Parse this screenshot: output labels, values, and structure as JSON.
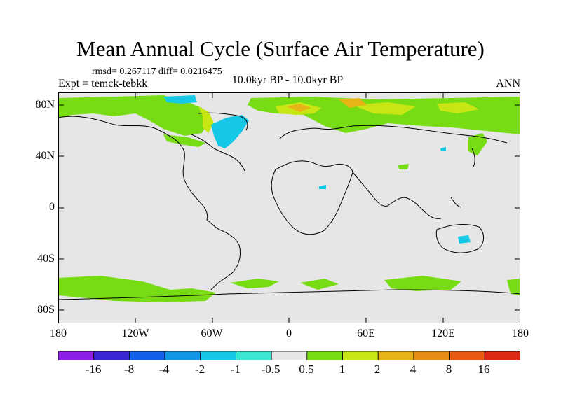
{
  "title": "Mean Annual Cycle (Surface Air Temperature)",
  "stats": "rmsd= 0.267117 diff= 0.0216475",
  "experiment": "Expt = temck-tebkk",
  "period": "10.0kyr BP - 10.0kyr BP",
  "season": "ANN",
  "lat_labels": [
    "80N",
    "40N",
    "0",
    "40S",
    "80S"
  ],
  "lon_labels": [
    "180",
    "120W",
    "60W",
    "0",
    "60E",
    "120E",
    "180"
  ],
  "colorbar": {
    "labels": [
      "-16",
      "-8",
      "-4",
      "-2",
      "-1",
      "-0.5",
      "0.5",
      "1",
      "2",
      "4",
      "8",
      "16"
    ],
    "colors": [
      "#8c1ee6",
      "#3c28d2",
      "#1460e6",
      "#1496e6",
      "#14c8e6",
      "#3ce6d2",
      "#e6e6e6",
      "#78dc14",
      "#c8e614",
      "#e6b414",
      "#e68c14",
      "#e65a14",
      "#dc2814"
    ]
  },
  "map_colors": {
    "background": "#e6e6e6",
    "warm_1": "#78dc14",
    "warm_2": "#c8e614",
    "warm_3": "#e6b414",
    "cool_1": "#3ce6d2",
    "cool_2": "#14c8e6"
  }
}
